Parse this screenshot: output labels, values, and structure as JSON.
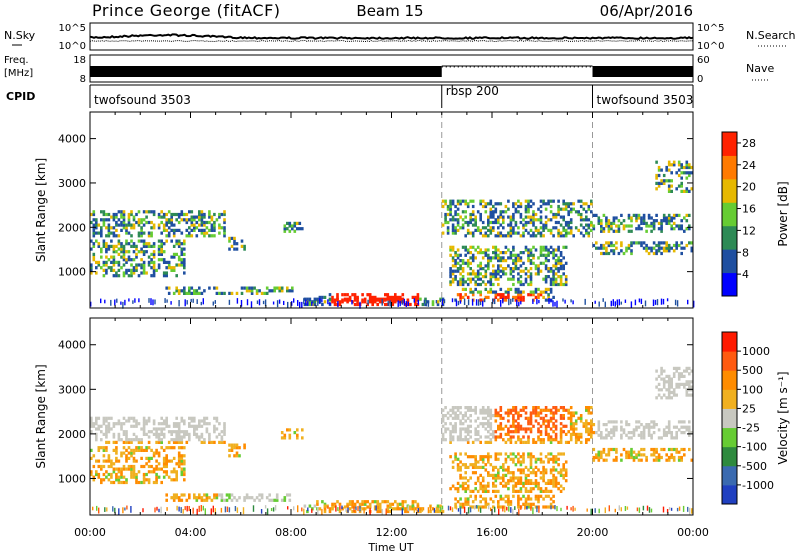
{
  "header": {
    "station": "Prince George (fitACF)",
    "beam": "Beam 15",
    "date": "06/Apr/2016"
  },
  "strip": {
    "nsky_label": "N.Sky",
    "nsky_ticks": [
      "10^5",
      "10^0"
    ],
    "nsearch_label": "N.Search",
    "freq_label": "Freq.",
    "freq_unit": "[MHz]",
    "freq_ticks": [
      "18",
      "8"
    ],
    "nave_ticks": [
      "60",
      "0"
    ],
    "nave_label": "Nave",
    "cpid_label": "CPID",
    "cpid_segments": [
      {
        "name": "twofsound 3503",
        "start_h": 0,
        "end_h": 14
      },
      {
        "name": "rbsp 200",
        "start_h": 14,
        "end_h": 20
      },
      {
        "name": "twofsound 3503",
        "start_h": 20,
        "end_h": 24
      }
    ]
  },
  "chart_data": [
    {
      "type": "heatmap",
      "name": "power",
      "ylabel": "Slant Range [km]",
      "xlim": [
        0,
        24
      ],
      "ylim": [
        180,
        4600
      ],
      "yticks": [
        "1000",
        "2000",
        "3000",
        "4000"
      ],
      "colorbar_label": "Power [dB]",
      "colorbar_ticks": [
        "4",
        "8",
        "12",
        "16",
        "20",
        "24",
        "28"
      ],
      "colorbar_range": [
        0,
        30
      ],
      "colors": [
        "#0000ff",
        "#1f4fa0",
        "#2d8a55",
        "#66cc33",
        "#e6b800",
        "#ff7a00",
        "#ff2200"
      ]
    },
    {
      "type": "heatmap",
      "name": "velocity",
      "ylabel": "Slant Range [km]",
      "xlim": [
        0,
        24
      ],
      "ylim": [
        180,
        4600
      ],
      "yticks": [
        "1000",
        "2000",
        "3000",
        "4000"
      ],
      "colorbar_label": "Velocity [m s⁻¹]",
      "colorbar_ticks": [
        "1000",
        "500",
        "100",
        "25",
        "-25",
        "-100",
        "-500",
        "-1000"
      ],
      "colors": [
        "#2040c0",
        "#3a6ab0",
        "#2e8a3e",
        "#66cc33",
        "#c8c8c0",
        "#f0b020",
        "#ff8c00",
        "#ff5a10",
        "#ff1a00"
      ]
    }
  ],
  "xaxis": {
    "ticks": [
      "00:00",
      "04:00",
      "08:00",
      "12:00",
      "16:00",
      "20:00",
      "00:00"
    ],
    "label": "Time UT"
  }
}
